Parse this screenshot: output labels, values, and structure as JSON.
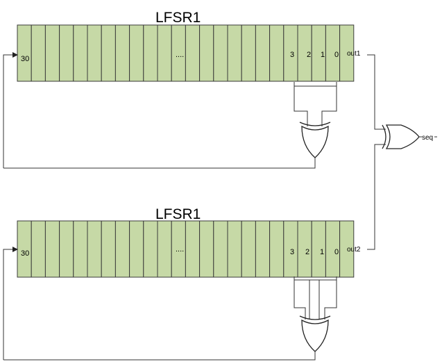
{
  "colors": {
    "cell_fill": "#c6d9a6",
    "cell_stroke": "#3a3a3a",
    "wire": "#333333"
  },
  "registers": [
    {
      "title": "LFSR1",
      "cell_count": 24,
      "labels": {
        "first": "30",
        "ellipsis": "....",
        "b3": "3",
        "b2": "2",
        "b1": "1",
        "b0": "0"
      },
      "output": "out1"
    },
    {
      "title": "LFSR1",
      "cell_count": 24,
      "labels": {
        "first": "30",
        "ellipsis": "....",
        "b3": "3",
        "b2": "2",
        "b1": "1",
        "b0": "0"
      },
      "output": "out2"
    }
  ],
  "gates": {
    "feedback_1": "xor-gate",
    "feedback_2": "xor-gate",
    "output": "xor-gate"
  },
  "final_output": "seq"
}
